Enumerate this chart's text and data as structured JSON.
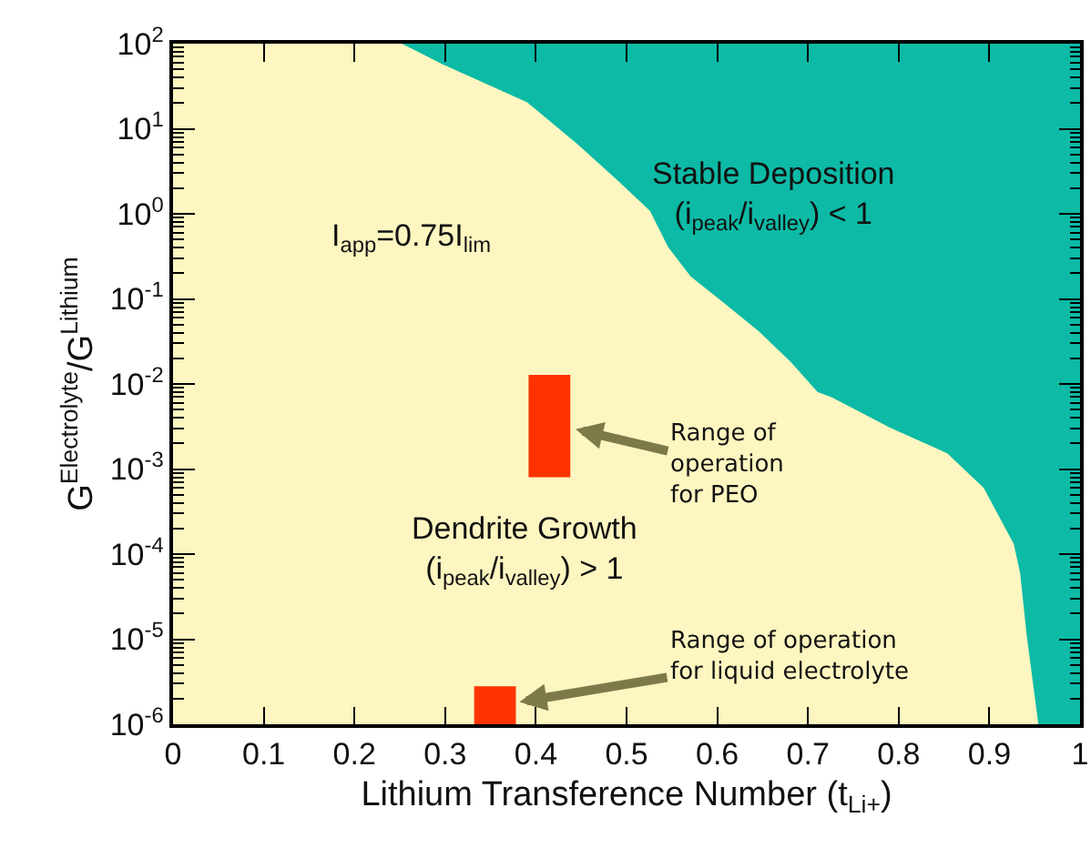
{
  "chart_data": {
    "type": "area",
    "xlabel": "Lithium Transference Number (t$_{Li+}$)",
    "ylabel": "G$^{Electrolyte}$/G$^{Lithium}$",
    "log": "y",
    "xlim": [
      0,
      1
    ],
    "xticks": [
      0,
      0.1,
      0.2,
      0.3,
      0.4,
      0.5,
      0.6,
      0.7,
      0.8,
      0.9,
      1
    ],
    "ylim": [
      1e-06,
      100
    ],
    "yticks": [
      {
        "value": 1e-06,
        "label": "10$^{-6}$"
      },
      {
        "value": 1e-05,
        "label": "10$^{-5}$"
      },
      {
        "value": 0.0001,
        "label": "10$^{-4}$"
      },
      {
        "value": 0.001,
        "label": "10$^{-3}$"
      },
      {
        "value": 0.01,
        "label": "10$^{-2}$"
      },
      {
        "value": 0.1,
        "label": "10$^{-1}$"
      },
      {
        "value": 1,
        "label": "10$^{0}$"
      },
      {
        "value": 10,
        "label": "10$^{1}$"
      },
      {
        "value": 100,
        "label": "10$^{2}$"
      }
    ],
    "series": [
      {
        "color": "#0cbaa6",
        "x": [
          0.25,
          1
        ],
        "values": [
          100,
          100
        ]
      },
      {
        "color": "#fdf6c0",
        "x": [
          0,
          0.25,
          0.3,
          0.39,
          0.445,
          0.49,
          0.525,
          0.545,
          0.57,
          0.605,
          0.645,
          0.68,
          0.71,
          0.726,
          0.79,
          0.853,
          0.893,
          0.926,
          0.933,
          0.94,
          0.953
        ],
        "values": [
          100,
          100,
          54,
          20,
          6.5,
          2.4,
          1.07,
          0.4,
          0.18,
          0.091,
          0.041,
          0.018,
          0.0079,
          0.0068,
          0.003,
          0.0015,
          0.00059,
          0.00013,
          5.9e-05,
          1.15e-05,
          1e-06
        ]
      },
      {
        "type": "bar",
        "color": "#ff3300",
        "x": [
          0.415,
          0.355
        ],
        "base": [
          0.0008,
          1e-06
        ],
        "values": [
          0.012,
          1.8e-06
        ]
      }
    ],
    "annotations": [
      "Stable Deposition\n(i$_{peak}$/i$_{valley}$) < 1",
      "I$_{app}$=0.75I$_{lim}$",
      "Dendrite Growth\n(i$_{peak}$/i$_{valley}$) > 1",
      {
        "text": "Range of\noperation\nfor PEO",
        "x": 0.44,
        "y": 0.003
      },
      {
        "text": "Range of operation\nfor liquid electrolyte",
        "x": 0.378,
        "y": 1.8e-06
      }
    ]
  }
}
